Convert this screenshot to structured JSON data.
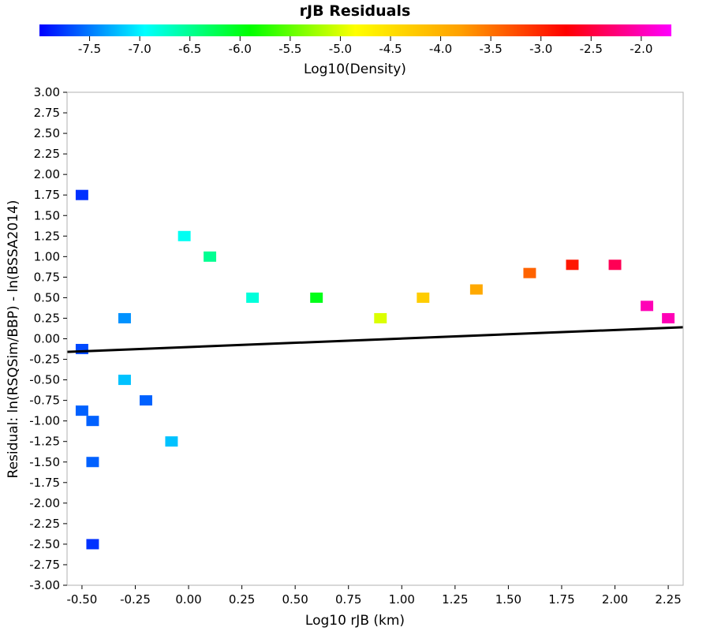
{
  "chart_data": {
    "type": "heatmap",
    "title": "rJB Residuals",
    "xlabel": "Log10 rJB (km)",
    "ylabel": "Residual: ln(RSQSim/BBP) - ln(BSSA2014)",
    "xlim": [
      -0.57,
      2.32
    ],
    "ylim": [
      -3.0,
      3.0
    ],
    "x_ticks": [
      "-0.50",
      "-0.25",
      "0.00",
      "0.25",
      "0.50",
      "0.75",
      "1.00",
      "1.25",
      "1.50",
      "1.75",
      "2.00",
      "2.25"
    ],
    "y_ticks": [
      "3.00",
      "2.75",
      "2.50",
      "2.25",
      "2.00",
      "1.75",
      "1.50",
      "1.25",
      "1.00",
      "0.75",
      "0.50",
      "0.25",
      "0.00",
      "-0.25",
      "-0.50",
      "-0.75",
      "-1.00",
      "-1.25",
      "-1.50",
      "-1.75",
      "-2.00",
      "-2.25",
      "-2.50",
      "-2.75",
      "-3.00"
    ],
    "grid": false,
    "colorbar": {
      "label": "Log10(Density)",
      "range": [
        -8.0,
        -1.7
      ],
      "ticks": [
        "-7.5",
        "-7.0",
        "-6.5",
        "-6.0",
        "-5.5",
        "-5.0",
        "-4.5",
        "-4.0",
        "-3.5",
        "-3.0",
        "-2.5",
        "-2.0"
      ],
      "colors": [
        "#0000ff",
        "#00ffff",
        "#00ff00",
        "#ffff00",
        "#ffa000",
        "#ff0000",
        "#ff00ff"
      ]
    },
    "bin_width_x": 0.059,
    "bin_height_y": 0.125,
    "cells": [
      [
        -0.5,
        1.75,
        -7.8
      ],
      [
        -0.5,
        -0.125,
        -7.7
      ],
      [
        -0.5,
        -0.875,
        -7.6
      ],
      [
        -0.45,
        -1.0,
        -7.6
      ],
      [
        -0.45,
        -1.5,
        -7.6
      ],
      [
        -0.45,
        -2.5,
        -7.8
      ],
      [
        -0.3,
        0.25,
        -7.4
      ],
      [
        -0.3,
        -0.5,
        -7.2
      ],
      [
        -0.2,
        -0.75,
        -7.6
      ],
      [
        -0.08,
        -1.25,
        -7.2
      ],
      [
        -0.02,
        1.25,
        -6.9
      ],
      [
        0.1,
        1.0,
        -6.5
      ],
      [
        0.3,
        0.5,
        -6.8
      ],
      [
        0.6,
        0.5,
        -6.0
      ],
      [
        0.9,
        0.25,
        -5.0
      ],
      [
        1.1,
        0.5,
        -4.3
      ],
      [
        1.35,
        0.6,
        -3.9
      ],
      [
        1.6,
        0.8,
        -3.4
      ],
      [
        1.8,
        0.9,
        -2.9
      ],
      [
        2.0,
        0.9,
        -2.4
      ],
      [
        2.15,
        0.4,
        -2.0
      ],
      [
        2.25,
        0.25,
        -2.0
      ]
    ],
    "fit_line": {
      "x": [
        -0.57,
        2.32
      ],
      "y": [
        -0.16,
        0.14
      ],
      "color": "#000000"
    }
  }
}
